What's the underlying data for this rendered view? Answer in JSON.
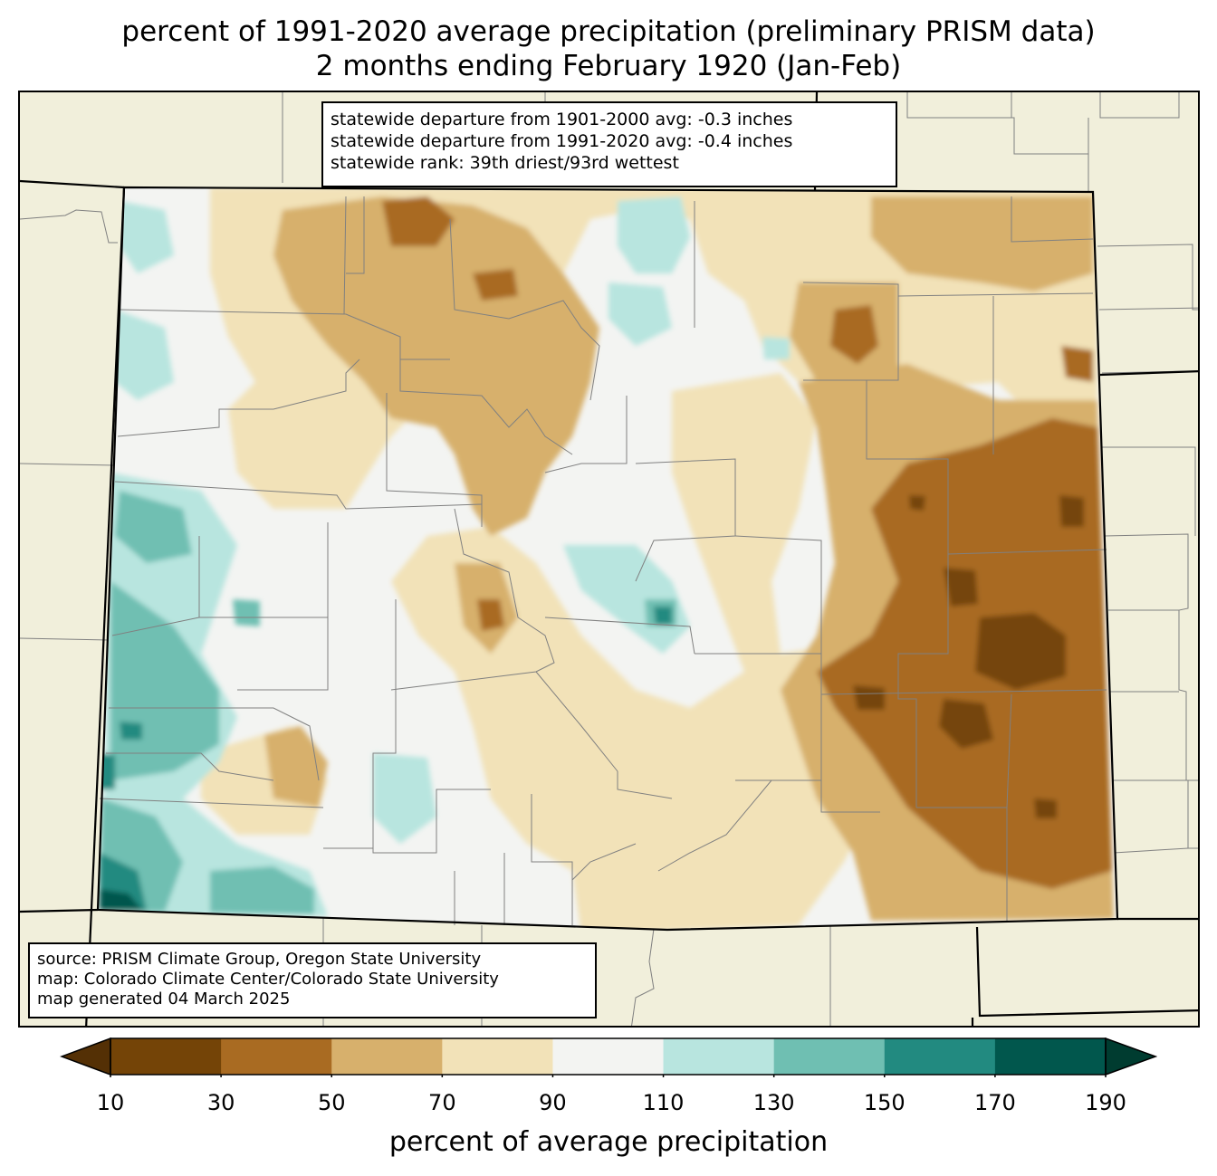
{
  "title": {
    "line1": "percent of 1991-2020 average precipitation (preliminary PRISM data)",
    "line2": "2 months ending February 1920 (Jan-Feb)"
  },
  "stats": {
    "line1": "statewide departure from 1901-2000 avg: -0.3 inches",
    "line2": "statewide departure from 1991-2020 avg: -0.4 inches",
    "line3": "statewide rank: 39th driest/93rd wettest"
  },
  "source": {
    "line1": "source: PRISM Climate Group, Oregon State University",
    "line2": "map: Colorado Climate Center/Colorado State University",
    "line3": "map generated 04 March 2025"
  },
  "colorbar": {
    "label": "percent of average precipitation",
    "ticks": [
      "10",
      "30",
      "50",
      "70",
      "90",
      "110",
      "130",
      "150",
      "170",
      "190"
    ],
    "under_color": "#543005",
    "over_color": "#003c30",
    "colors": [
      "#744407",
      "#a96b22",
      "#d7b06c",
      "#f2e2b8",
      "#f3f4f2",
      "#b8e5df",
      "#6fbfb2",
      "#228a80",
      "#01574d"
    ]
  },
  "map": {
    "background_color": "#f1efdb",
    "boundary_color": "#000000",
    "county_line_color": "#808080"
  }
}
